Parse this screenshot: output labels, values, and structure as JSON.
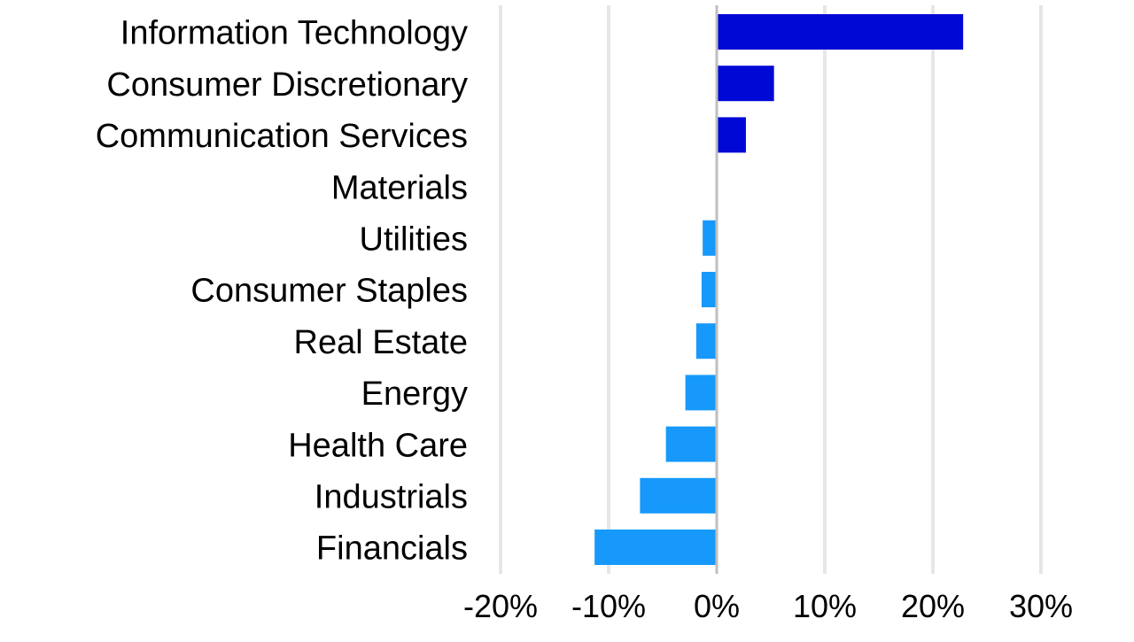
{
  "chart_data": {
    "type": "bar",
    "orientation": "horizontal",
    "title": "",
    "xlabel": "",
    "ylabel": "",
    "categories": [
      "Information Technology",
      "Consumer Discretionary",
      "Communication Services",
      "Materials",
      "Utilities",
      "Consumer Staples",
      "Real Estate",
      "Energy",
      "Health Care",
      "Industrials",
      "Financials"
    ],
    "values": [
      22.8,
      5.3,
      2.7,
      0.0,
      -1.3,
      -1.4,
      -1.9,
      -2.9,
      -4.7,
      -7.1,
      -11.3
    ],
    "xlim": [
      -20,
      30
    ],
    "xticks": [
      -20,
      -10,
      0,
      10,
      20,
      30
    ],
    "xtick_labels": [
      "-20%",
      "-10%",
      "0%",
      "10%",
      "20%",
      "30%"
    ],
    "grid": "vertical",
    "legend": "none",
    "colors": {
      "positive": "#0008D6",
      "negative": "#1699FA",
      "grid": "#E6E6E6",
      "zero_line": "#BFBFBF"
    }
  }
}
